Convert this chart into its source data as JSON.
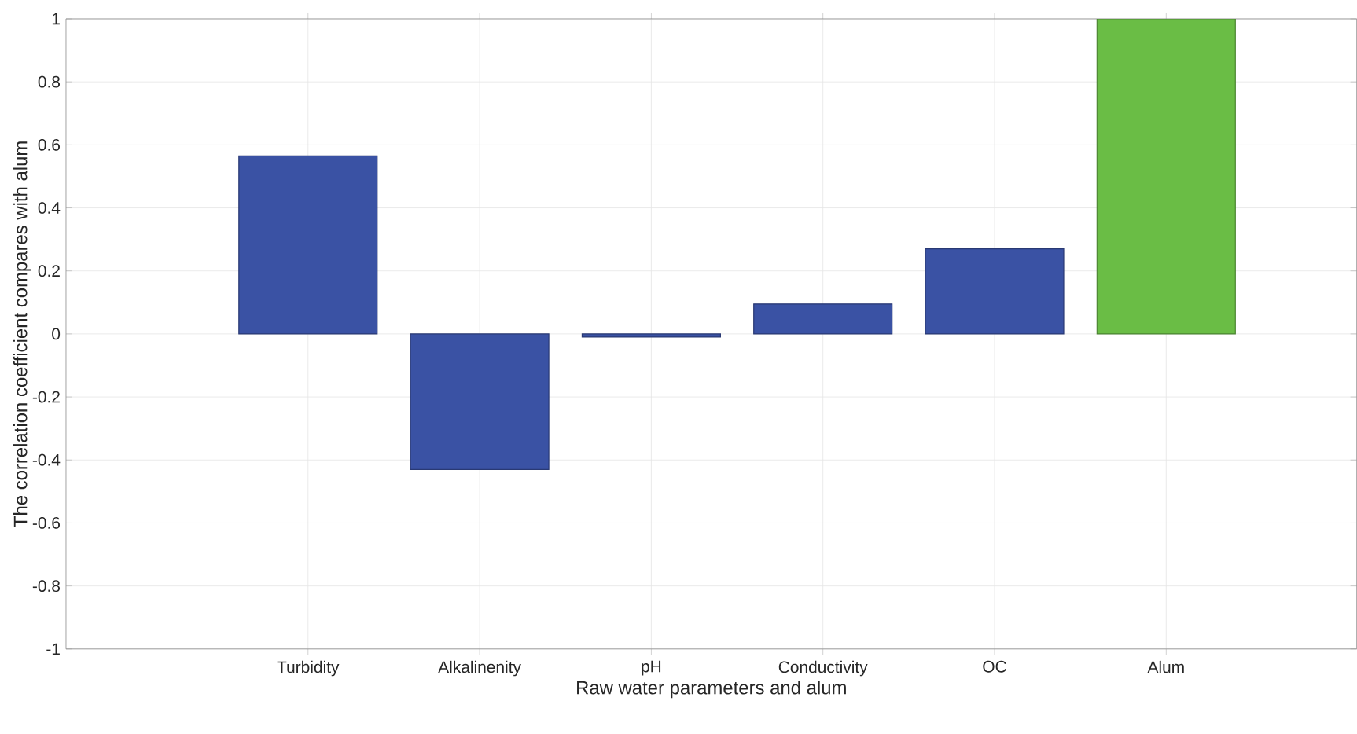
{
  "chart_data": {
    "type": "bar",
    "xlabel": "Raw water parameters and alum",
    "ylabel": "The correlation coefficient compares with alum",
    "categories": [
      "Turbidity",
      "Alkalinenity",
      "pH",
      "Conductivity",
      "OC",
      "Alum"
    ],
    "values": [
      0.565,
      -0.43,
      -0.01,
      0.095,
      0.27,
      1.0
    ],
    "colors": [
      "#3a52a4",
      "#3a52a4",
      "#3a52a4",
      "#3a52a4",
      "#3a52a4",
      "#6abd45"
    ],
    "ylim": [
      -1,
      1
    ],
    "yticks": [
      -1,
      -0.8,
      -0.6,
      -0.4,
      -0.2,
      0,
      0.2,
      0.4,
      0.6,
      0.8,
      1
    ],
    "grid": true
  }
}
